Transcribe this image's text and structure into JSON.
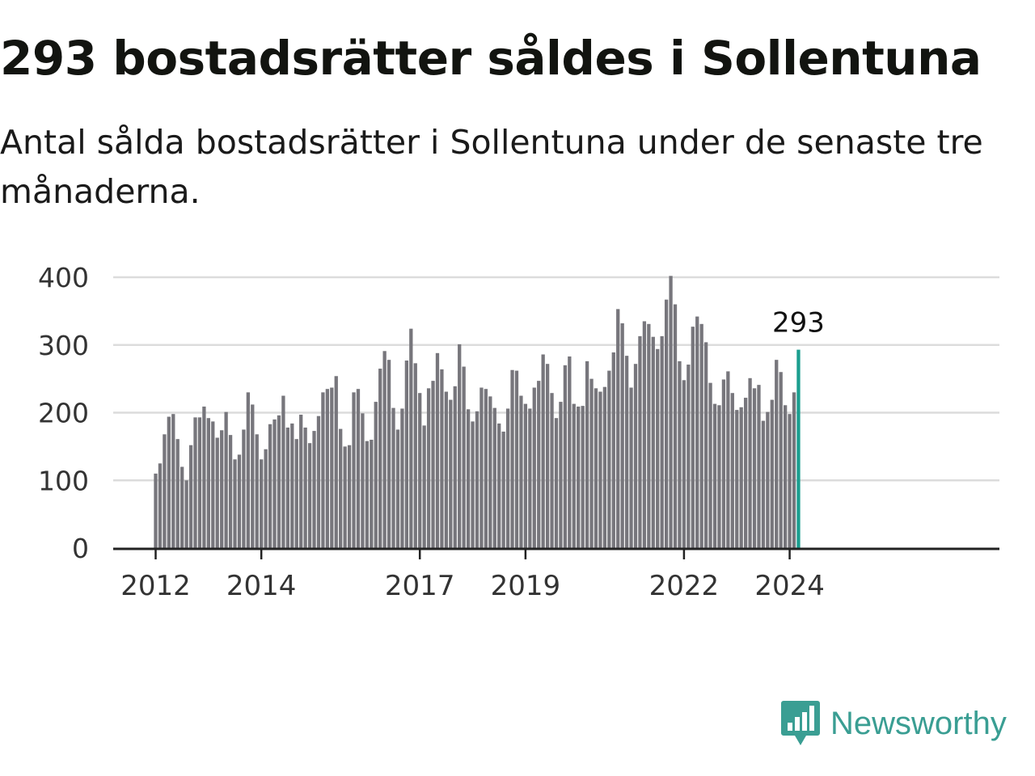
{
  "title": "293 bostadsrätter såldes i Sollentuna",
  "subtitle": "Antal sålda bostadsrätter i Sollentuna under de senaste tre månaderna.",
  "brand": {
    "name": "Newsworthy",
    "color": "#3a9e93",
    "icon": "bar-chart-speech-bubble-icon"
  },
  "chart_data": {
    "type": "bar",
    "title": "",
    "xlabel": "",
    "ylabel": "",
    "ylim": [
      0,
      400
    ],
    "yticks": [
      0,
      100,
      200,
      300,
      400
    ],
    "xticks": [
      "2012",
      "2014",
      "2017",
      "2019",
      "2022",
      "2024"
    ],
    "grid": true,
    "bar_color": "#77767c",
    "highlight_color": "#1a9e8f",
    "highlight_label": "293",
    "values": [
      110,
      125,
      168,
      194,
      198,
      161,
      120,
      100,
      152,
      193,
      193,
      209,
      192,
      187,
      163,
      174,
      201,
      167,
      131,
      138,
      175,
      230,
      212,
      168,
      131,
      146,
      183,
      190,
      196,
      225,
      178,
      184,
      161,
      197,
      178,
      155,
      173,
      195,
      230,
      235,
      237,
      254,
      176,
      150,
      152,
      230,
      235,
      199,
      158,
      160,
      216,
      265,
      291,
      278,
      207,
      175,
      206,
      277,
      324,
      273,
      229,
      181,
      236,
      247,
      288,
      264,
      231,
      219,
      239,
      301,
      268,
      205,
      187,
      202,
      237,
      235,
      224,
      207,
      184,
      172,
      206,
      263,
      262,
      225,
      213,
      206,
      237,
      247,
      286,
      272,
      229,
      192,
      216,
      270,
      283,
      213,
      209,
      210,
      276,
      250,
      236,
      231,
      238,
      262,
      289,
      353,
      332,
      284,
      237,
      272,
      313,
      335,
      331,
      312,
      294,
      313,
      367,
      402,
      360,
      276,
      248,
      271,
      327,
      342,
      331,
      304,
      244,
      213,
      211,
      249,
      261,
      229,
      204,
      208,
      222,
      251,
      236,
      241,
      188,
      201,
      219,
      278,
      260,
      211,
      198,
      230,
      293
    ]
  }
}
